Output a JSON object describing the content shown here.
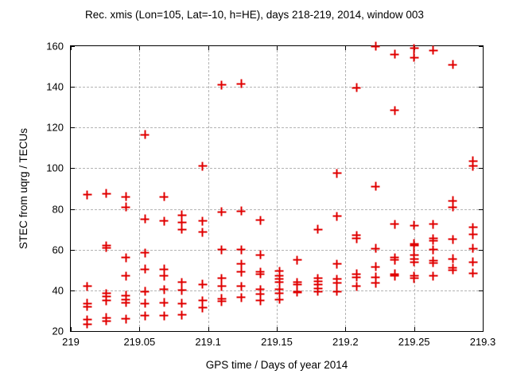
{
  "chart_data": {
    "type": "scatter",
    "title": "Rec. xmis (Lon=105, Lat=-10, h=HE), days 218-219, 2014, window 003",
    "xlabel": "GPS time / Days of year 2014",
    "ylabel": "STEC from uqrg / TECUs",
    "xlim": [
      219,
      219.3
    ],
    "ylim": [
      20,
      160
    ],
    "xticks": [
      219,
      219.05,
      219.1,
      219.15,
      219.2,
      219.25,
      219.3
    ],
    "xtick_labels": [
      "219",
      "219.05",
      "219.1",
      "219.15",
      "219.2",
      "219.25",
      "219.3"
    ],
    "yticks": [
      20,
      40,
      60,
      80,
      100,
      120,
      140,
      160
    ],
    "ytick_labels": [
      "20",
      "40",
      "60",
      "80",
      "100",
      "120",
      "140",
      "160"
    ],
    "grid": true,
    "legend": "none",
    "marker": "plus",
    "marker_color": "#e00000",
    "grid_color": "#b4b4b4",
    "points": [
      [
        219.012,
        87
      ],
      [
        219.012,
        42
      ],
      [
        219.012,
        33.5
      ],
      [
        219.012,
        32
      ],
      [
        219.012,
        25.5
      ],
      [
        219.012,
        23.5
      ],
      [
        219.026,
        87.5
      ],
      [
        219.026,
        62
      ],
      [
        219.026,
        61
      ],
      [
        219.026,
        38.5
      ],
      [
        219.026,
        37
      ],
      [
        219.026,
        35
      ],
      [
        219.026,
        26.5
      ],
      [
        219.026,
        25
      ],
      [
        219.04,
        86
      ],
      [
        219.04,
        81
      ],
      [
        219.04,
        56
      ],
      [
        219.04,
        47
      ],
      [
        219.04,
        37.5
      ],
      [
        219.04,
        35.5
      ],
      [
        219.04,
        34
      ],
      [
        219.04,
        26
      ],
      [
        219.054,
        116.5
      ],
      [
        219.054,
        75
      ],
      [
        219.054,
        58.5
      ],
      [
        219.054,
        50.5
      ],
      [
        219.054,
        39.5
      ],
      [
        219.054,
        33.5
      ],
      [
        219.054,
        27.5
      ],
      [
        219.068,
        86
      ],
      [
        219.068,
        74
      ],
      [
        219.068,
        50.5
      ],
      [
        219.068,
        47
      ],
      [
        219.068,
        40.5
      ],
      [
        219.068,
        34
      ],
      [
        219.068,
        27.5
      ],
      [
        219.081,
        77
      ],
      [
        219.081,
        73.5
      ],
      [
        219.081,
        70
      ],
      [
        219.081,
        44
      ],
      [
        219.081,
        40
      ],
      [
        219.081,
        33.5
      ],
      [
        219.081,
        28
      ],
      [
        219.096,
        101
      ],
      [
        219.096,
        74
      ],
      [
        219.096,
        68.5
      ],
      [
        219.096,
        43
      ],
      [
        219.096,
        35
      ],
      [
        219.096,
        31.5
      ],
      [
        219.11,
        141
      ],
      [
        219.11,
        78.5
      ],
      [
        219.11,
        60
      ],
      [
        219.11,
        46
      ],
      [
        219.11,
        42
      ],
      [
        219.11,
        36
      ],
      [
        219.11,
        34.5
      ],
      [
        219.124,
        141.5
      ],
      [
        219.124,
        79
      ],
      [
        219.124,
        60
      ],
      [
        219.124,
        53
      ],
      [
        219.124,
        49
      ],
      [
        219.124,
        42
      ],
      [
        219.124,
        36.5
      ],
      [
        219.138,
        74.5
      ],
      [
        219.138,
        57.5
      ],
      [
        219.138,
        49
      ],
      [
        219.138,
        48
      ],
      [
        219.138,
        40.5
      ],
      [
        219.138,
        38
      ],
      [
        219.138,
        35
      ],
      [
        219.152,
        49.5
      ],
      [
        219.152,
        47
      ],
      [
        219.152,
        45.5
      ],
      [
        219.152,
        44
      ],
      [
        219.152,
        40.5
      ],
      [
        219.152,
        38.5
      ],
      [
        219.152,
        35.5
      ],
      [
        219.165,
        55
      ],
      [
        219.165,
        44
      ],
      [
        219.165,
        43
      ],
      [
        219.165,
        39.5
      ],
      [
        219.165,
        39
      ],
      [
        219.18,
        70
      ],
      [
        219.18,
        46
      ],
      [
        219.18,
        44.5
      ],
      [
        219.18,
        43
      ],
      [
        219.18,
        41
      ],
      [
        219.18,
        39.5
      ],
      [
        219.194,
        97.5
      ],
      [
        219.194,
        76.5
      ],
      [
        219.194,
        53
      ],
      [
        219.194,
        45.5
      ],
      [
        219.194,
        43.5
      ],
      [
        219.194,
        39.5
      ],
      [
        219.208,
        139.5
      ],
      [
        219.208,
        67
      ],
      [
        219.208,
        65.5
      ],
      [
        219.208,
        48
      ],
      [
        219.208,
        46.5
      ],
      [
        219.208,
        42
      ],
      [
        219.222,
        160
      ],
      [
        219.222,
        91
      ],
      [
        219.222,
        60.5
      ],
      [
        219.222,
        51.5
      ],
      [
        219.222,
        46.5
      ],
      [
        219.222,
        43.5
      ],
      [
        219.236,
        156
      ],
      [
        219.236,
        128.5
      ],
      [
        219.236,
        72.5
      ],
      [
        219.236,
        56
      ],
      [
        219.236,
        55
      ],
      [
        219.236,
        48
      ],
      [
        219.236,
        47
      ],
      [
        219.25,
        159
      ],
      [
        219.25,
        154.5
      ],
      [
        219.25,
        72
      ],
      [
        219.25,
        63
      ],
      [
        219.25,
        62
      ],
      [
        219.25,
        57.5
      ],
      [
        219.25,
        55.5
      ],
      [
        219.25,
        54
      ],
      [
        219.25,
        47
      ],
      [
        219.25,
        46
      ],
      [
        219.264,
        158
      ],
      [
        219.264,
        72.5
      ],
      [
        219.264,
        65.5
      ],
      [
        219.264,
        64.5
      ],
      [
        219.264,
        60
      ],
      [
        219.264,
        54.5
      ],
      [
        219.264,
        53.5
      ],
      [
        219.264,
        47
      ],
      [
        219.278,
        151
      ],
      [
        219.278,
        84
      ],
      [
        219.278,
        81
      ],
      [
        219.278,
        65
      ],
      [
        219.278,
        55.5
      ],
      [
        219.278,
        51
      ],
      [
        219.278,
        50
      ],
      [
        219.293,
        103.5
      ],
      [
        219.293,
        101
      ],
      [
        219.293,
        71
      ],
      [
        219.293,
        67.5
      ],
      [
        219.293,
        60.5
      ],
      [
        219.293,
        54
      ],
      [
        219.293,
        48.5
      ]
    ]
  }
}
